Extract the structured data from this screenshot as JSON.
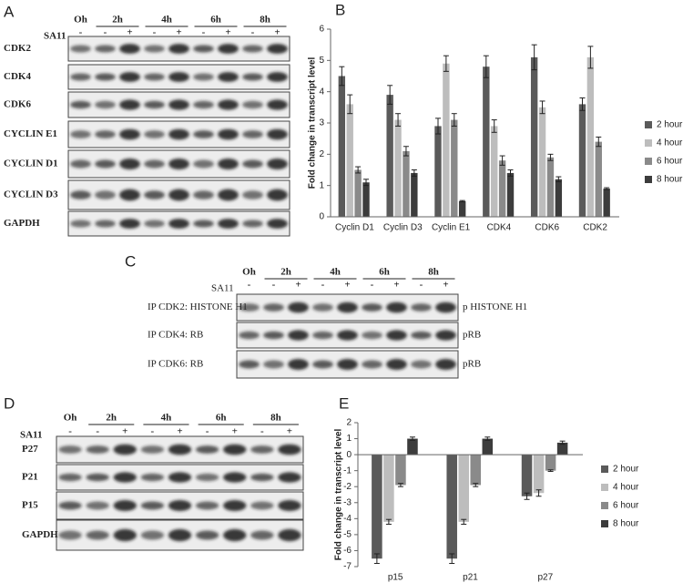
{
  "blots": [
    {
      "label": "A",
      "times": [
        "Oh",
        "2h",
        "4h",
        "6h",
        "8h"
      ],
      "treatment": "SA11",
      "signs": [
        "-",
        "-",
        "+",
        "-",
        "+",
        "-",
        "+",
        "-",
        "+"
      ],
      "rows": [
        {
          "name": "CDK2"
        },
        {
          "name": "CDK4"
        },
        {
          "name": "CDK6"
        },
        {
          "name": "CYCLIN E1"
        },
        {
          "name": "CYCLIN D1"
        },
        {
          "name": "CYCLIN D3"
        },
        {
          "name": "GAPDH"
        }
      ]
    },
    {
      "label": "C",
      "times": [
        "Oh",
        "2h",
        "4h",
        "6h",
        "8h"
      ],
      "treatment": "SA11",
      "signs": [
        "-",
        "-",
        "+",
        "-",
        "+",
        "-",
        "+",
        "-",
        "+"
      ],
      "rows": [
        {
          "name": "IP CDK2: HISTONE H1",
          "product": "p HISTONE H1"
        },
        {
          "name": "IP CDK4: RB",
          "product": "pRB"
        },
        {
          "name": "IP CDK6: RB",
          "product": "pRB"
        }
      ]
    },
    {
      "label": "D",
      "times": [
        "Oh",
        "2h",
        "4h",
        "6h",
        "8h"
      ],
      "treatment": "SA11",
      "signs": [
        "-",
        "-",
        "+",
        "-",
        "+",
        "-",
        "+",
        "-",
        "+"
      ],
      "rows": [
        {
          "name": "P27"
        },
        {
          "name": "P21"
        },
        {
          "name": "P15"
        },
        {
          "name": "GAPDH"
        }
      ]
    }
  ],
  "chart_data": [
    {
      "type": "bar",
      "label": "B",
      "ylabel": "Fold change in transcript level",
      "categories": [
        "Cyclin D1",
        "Cyclin D3",
        "Cyclin E1",
        "CDK4",
        "CDK6",
        "CDK2"
      ],
      "series": [
        {
          "name": "2 hour",
          "color": "#5a5a5a",
          "values": [
            4.5,
            3.9,
            2.9,
            4.8,
            5.1,
            3.6
          ],
          "errors": [
            0.3,
            0.3,
            0.25,
            0.35,
            0.4,
            0.2
          ]
        },
        {
          "name": "4 hour",
          "color": "#bdbdbd",
          "values": [
            3.6,
            3.1,
            4.9,
            2.9,
            3.5,
            5.1
          ],
          "errors": [
            0.3,
            0.2,
            0.25,
            0.2,
            0.2,
            0.35
          ]
        },
        {
          "name": "6 hour",
          "color": "#8a8a8a",
          "values": [
            1.5,
            2.1,
            3.1,
            1.8,
            1.9,
            2.4
          ],
          "errors": [
            0.1,
            0.15,
            0.2,
            0.15,
            0.1,
            0.15
          ]
        },
        {
          "name": "8 hour",
          "color": "#3c3c3c",
          "values": [
            1.1,
            1.4,
            0.5,
            1.4,
            1.2,
            0.9
          ],
          "errors": [
            0.1,
            0.1,
            0.02,
            0.1,
            0.08,
            0.03
          ]
        }
      ],
      "ylim": [
        0,
        6
      ],
      "yticks": [
        0,
        1,
        2,
        3,
        4,
        5,
        6
      ],
      "legend": "right"
    },
    {
      "type": "bar",
      "label": "E",
      "ylabel": "Fold change in transcript level",
      "categories": [
        "p15",
        "p21",
        "p27"
      ],
      "series": [
        {
          "name": "2 hour",
          "color": "#5a5a5a",
          "values": [
            -6.5,
            -6.5,
            -2.6
          ],
          "errors": [
            0.3,
            0.3,
            0.2
          ]
        },
        {
          "name": "4 hour",
          "color": "#bdbdbd",
          "values": [
            -4.2,
            -4.2,
            -2.4
          ],
          "errors": [
            0.15,
            0.15,
            0.2
          ]
        },
        {
          "name": "6 hour",
          "color": "#8a8a8a",
          "values": [
            -1.9,
            -1.9,
            -1.0
          ],
          "errors": [
            0.1,
            0.1,
            0.05
          ]
        },
        {
          "name": "8 hour",
          "color": "#3c3c3c",
          "values": [
            1.0,
            1.0,
            0.75
          ],
          "errors": [
            0.1,
            0.1,
            0.1
          ]
        }
      ],
      "ylim": [
        -7,
        2
      ],
      "yticks": [
        -7,
        -6,
        -5,
        -4,
        -3,
        -2,
        -1,
        0,
        1,
        2
      ],
      "legend": "right"
    }
  ]
}
